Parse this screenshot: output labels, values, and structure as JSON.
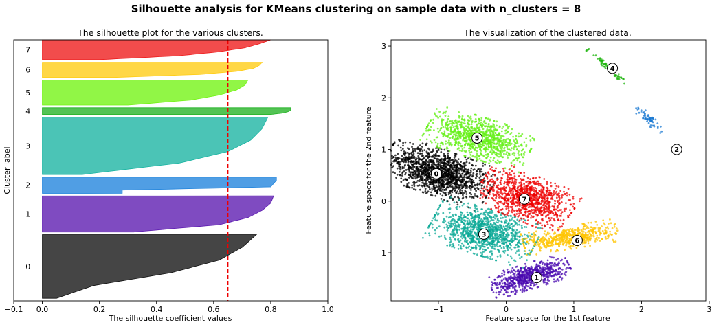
{
  "figure": {
    "suptitle": "Silhouette analysis for KMeans clustering on sample data with n_clusters = 8"
  },
  "chart_data": [
    {
      "type": "bar",
      "subtype": "silhouette",
      "title": "The silhouette plot for the various clusters.",
      "xlabel": "The silhouette coefficient values",
      "ylabel": "Cluster label",
      "xlim": [
        -0.1,
        1.0
      ],
      "x_ticks": [
        -0.1,
        0.0,
        0.2,
        0.4,
        0.6,
        0.8,
        1.0
      ],
      "x_tick_labels": [
        "−0.1",
        "0.0",
        "0.2",
        "0.4",
        "0.6",
        "0.8",
        "1.0"
      ],
      "ylim": [
        0,
        1000
      ],
      "average_silhouette": 0.65,
      "clusters": [
        {
          "label": "0",
          "y0": 10,
          "y1": 254,
          "max": 0.75,
          "tail": [
            0.05,
            0.18,
            0.45,
            0.62,
            0.7,
            0.75
          ],
          "color": "#111111"
        },
        {
          "label": "1",
          "y0": 264,
          "y1": 402,
          "max": 0.81,
          "tail": [
            0.32,
            0.62,
            0.72,
            0.77,
            0.8,
            0.81
          ],
          "color": "#5b18b0"
        },
        {
          "label": "2",
          "y0": 412,
          "y1": 474,
          "max": 0.82,
          "tail": [
            0.28,
            0.28,
            0.8,
            0.81,
            0.82,
            0.82
          ],
          "color": "#1f83dc"
        },
        {
          "label": "3",
          "y0": 484,
          "y1": 704,
          "max": 0.79,
          "tail": [
            0.14,
            0.48,
            0.65,
            0.73,
            0.77,
            0.79
          ],
          "color": "#18b4a2"
        },
        {
          "label": "4",
          "y0": 714,
          "y1": 740,
          "max": 0.87,
          "tail": [
            0.8,
            0.84,
            0.86,
            0.87,
            0.87,
            0.87
          ],
          "color": "#22b224"
        },
        {
          "label": "5",
          "y0": 750,
          "y1": 846,
          "max": 0.72,
          "tail": [
            0.3,
            0.52,
            0.62,
            0.68,
            0.71,
            0.72
          ],
          "color": "#72f312"
        },
        {
          "label": "6",
          "y0": 856,
          "y1": 914,
          "max": 0.77,
          "tail": [
            0.25,
            0.55,
            0.68,
            0.74,
            0.76,
            0.77
          ],
          "color": "#ffcc12"
        },
        {
          "label": "7",
          "y0": 924,
          "y1": 1000,
          "max": 0.8,
          "tail": [
            0.2,
            0.48,
            0.62,
            0.71,
            0.76,
            0.8
          ],
          "color": "#ee1a1a"
        }
      ]
    },
    {
      "type": "scatter",
      "title": "The visualization of the clustered data.",
      "xlabel": "Feature space for the 1st feature",
      "ylabel": "Feature space for the 2nd feature",
      "xlim": [
        -1.7,
        2.95
      ],
      "ylim": [
        -1.93,
        3.12
      ],
      "x_ticks": [
        -1,
        0,
        1,
        2,
        3
      ],
      "x_tick_labels": [
        "−1",
        "0",
        "1",
        "2",
        "3"
      ],
      "y_ticks": [
        -1,
        0,
        1,
        2,
        3
      ],
      "y_tick_labels": [
        "−1",
        "0",
        "1",
        "2",
        "3"
      ],
      "clusters": [
        {
          "label": "0",
          "color": "#000000",
          "center": [
            -1.03,
            0.53
          ],
          "n": 1500,
          "blob": {
            "cx": -1.0,
            "cy": 0.55,
            "sx": 0.38,
            "sy": 0.2,
            "angle": -25
          }
        },
        {
          "label": "1",
          "color": "#4a0ab0",
          "center": [
            0.45,
            -1.48
          ],
          "n": 700,
          "blob": {
            "cx": 0.35,
            "cy": -1.45,
            "sx": 0.28,
            "sy": 0.11,
            "angle": 22
          }
        },
        {
          "label": "2",
          "color": "#1978d2",
          "center": [
            2.52,
            1.0
          ],
          "n": 60,
          "blob": {
            "cx": 2.1,
            "cy": 1.6,
            "sx": 0.15,
            "sy": 0.04,
            "angle": -52
          }
        },
        {
          "label": "3",
          "color": "#0aa896",
          "center": [
            -0.33,
            -0.64
          ],
          "n": 1100,
          "blob": {
            "cx": -0.33,
            "cy": -0.6,
            "sx": 0.36,
            "sy": 0.2,
            "angle": -22
          }
        },
        {
          "label": "4",
          "color": "#19b30a",
          "center": [
            1.57,
            2.57
          ],
          "n": 70,
          "blob": {
            "cx": 1.5,
            "cy": 2.6,
            "sx": 0.2,
            "sy": 0.02,
            "angle": -50
          }
        },
        {
          "label": "5",
          "color": "#66f018",
          "center": [
            -0.43,
            1.22
          ],
          "n": 1000,
          "blob": {
            "cx": -0.4,
            "cy": 1.22,
            "sx": 0.36,
            "sy": 0.18,
            "angle": -22
          }
        },
        {
          "label": "6",
          "color": "#ffc400",
          "center": [
            1.05,
            -0.76
          ],
          "n": 550,
          "blob": {
            "cx": 0.95,
            "cy": -0.7,
            "sx": 0.32,
            "sy": 0.1,
            "angle": 12
          }
        },
        {
          "label": "7",
          "color": "#ee0000",
          "center": [
            0.27,
            0.04
          ],
          "n": 1000,
          "blob": {
            "cx": 0.3,
            "cy": 0.07,
            "sx": 0.33,
            "sy": 0.2,
            "angle": -28
          }
        }
      ]
    }
  ]
}
